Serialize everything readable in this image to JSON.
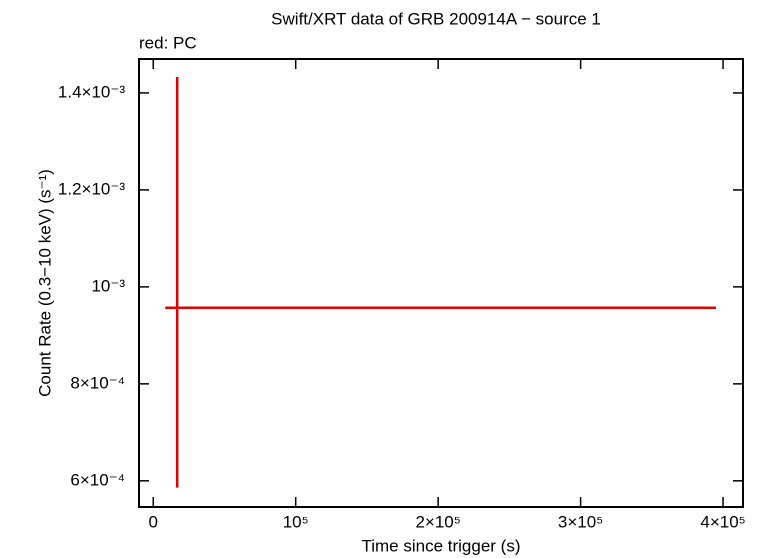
{
  "chart_data": {
    "type": "errorbar",
    "title": "Swift/XRT data of GRB 200914A − source 1",
    "subtitle": "red: PC",
    "x_label": "Time since trigger (s)",
    "y_label": "Count Rate (0.3−10 keV) (s⁻¹)",
    "series": [
      {
        "color": "#e00000",
        "x": [
          16800
        ],
        "values": [
          0.000957
        ],
        "x_lo": [
          8400
        ],
        "x_hi": [
          395000
        ],
        "y_lo": [
          0.000586
        ],
        "y_hi": [
          0.001433
        ]
      }
    ],
    "xlim": [
      -10000,
      414000
    ],
    "ylim": [
      0.000546,
      0.00147
    ],
    "xticks": [
      0,
      {
        "value": 100000,
        "label": "10⁵"
      },
      {
        "value": 200000,
        "label": "2×10⁵"
      },
      {
        "value": 300000,
        "label": "3×10⁵"
      },
      {
        "value": 400000,
        "label": "4×10⁵"
      }
    ],
    "yticks": [
      {
        "value": 0.0006,
        "label": "6×10⁻⁴"
      },
      {
        "value": 0.0008,
        "label": "8×10⁻⁴"
      },
      {
        "value": 0.001,
        "label": "10⁻³"
      },
      {
        "value": 0.0012,
        "label": "1.2×10⁻³"
      },
      {
        "value": 0.0014,
        "label": "1.4×10⁻³"
      }
    ]
  }
}
